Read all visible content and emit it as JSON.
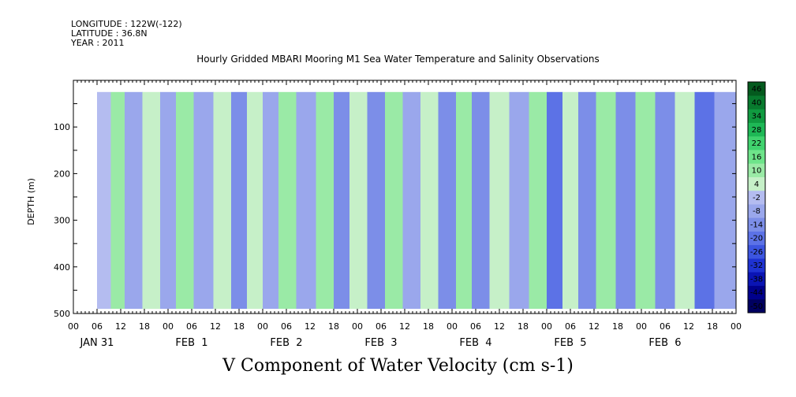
{
  "header": {
    "longitude": "LONGITUDE : 122W(-122)",
    "latitude": "LATITUDE : 36.8N",
    "year": "YEAR : 2011",
    "title": "Hourly Gridded MBARI Mooring M1 Sea Water Temperature and Salinity Observations"
  },
  "chart_data": {
    "type": "heatmap",
    "title": "Hourly Gridded MBARI Mooring M1 Sea Water Temperature and Salinity Observations",
    "variable_label": "V Component of Water Velocity (cm s-1)",
    "ylabel": "DEPTH (m)",
    "ylim": [
      500,
      0
    ],
    "yticks": [
      100,
      200,
      300,
      400,
      500
    ],
    "x_range_hours": [
      0,
      168
    ],
    "data_start_hour": 6,
    "data_depth_range": [
      25,
      490
    ],
    "x_tick_labels": [
      "00",
      "06",
      "12",
      "18",
      "00",
      "06",
      "12",
      "18",
      "00",
      "06",
      "12",
      "18",
      "00",
      "06",
      "12",
      "18",
      "00",
      "06",
      "12",
      "18",
      "00",
      "06",
      "12",
      "18",
      "00",
      "06",
      "12",
      "18",
      "00"
    ],
    "x_day_labels": [
      "JAN 31",
      "FEB  1",
      "FEB  2",
      "FEB  3",
      "FEB  4",
      "FEB  5",
      "FEB  6"
    ],
    "colorbar": {
      "levels": [
        -50,
        -44,
        -38,
        -32,
        -26,
        -20,
        -14,
        -8,
        -2,
        4,
        10,
        16,
        22,
        28,
        34,
        40,
        46
      ],
      "labels": [
        "46",
        "40",
        "34",
        "28",
        "22",
        "16",
        "10",
        "4",
        "-2",
        "-8",
        "-14",
        "-20",
        "-26",
        "-32",
        "-38",
        "-44",
        "-50"
      ],
      "colors": [
        "#000060",
        "#00008c",
        "#0a14b4",
        "#1e32d2",
        "#3c55e0",
        "#5c72e6",
        "#7c8ee8",
        "#9aa7ec",
        "#b4bcf0",
        "#c6f0c8",
        "#9aeaa6",
        "#6ee48a",
        "#40d26e",
        "#1eb856",
        "#109a40",
        "#087a2e",
        "#045a1e"
      ]
    },
    "bands": [
      {
        "hour": 8,
        "value": 2
      },
      {
        "hour": 11,
        "value": 10
      },
      {
        "hour": 15,
        "value": -8
      },
      {
        "hour": 20,
        "value": 6
      },
      {
        "hour": 24,
        "value": -4
      },
      {
        "hour": 28,
        "value": 12
      },
      {
        "hour": 33,
        "value": -6
      },
      {
        "hour": 38,
        "value": 8
      },
      {
        "hour": 42,
        "value": -14
      },
      {
        "hour": 46,
        "value": 6
      },
      {
        "hour": 50,
        "value": -8
      },
      {
        "hour": 54,
        "value": 12
      },
      {
        "hour": 59,
        "value": -4
      },
      {
        "hour": 64,
        "value": 10
      },
      {
        "hour": 68,
        "value": -10
      },
      {
        "hour": 72,
        "value": 6
      },
      {
        "hour": 77,
        "value": -12
      },
      {
        "hour": 81,
        "value": 12
      },
      {
        "hour": 86,
        "value": -6
      },
      {
        "hour": 90,
        "value": 6
      },
      {
        "hour": 95,
        "value": -10
      },
      {
        "hour": 99,
        "value": 12
      },
      {
        "hour": 103,
        "value": -14
      },
      {
        "hour": 108,
        "value": 8
      },
      {
        "hour": 113,
        "value": -4
      },
      {
        "hour": 118,
        "value": 10
      },
      {
        "hour": 122,
        "value": -16
      },
      {
        "hour": 126,
        "value": 4
      },
      {
        "hour": 130,
        "value": -10
      },
      {
        "hour": 135,
        "value": 10
      },
      {
        "hour": 140,
        "value": -12
      },
      {
        "hour": 145,
        "value": 12
      },
      {
        "hour": 150,
        "value": -14
      },
      {
        "hour": 155,
        "value": 6
      },
      {
        "hour": 160,
        "value": -18
      },
      {
        "hour": 165,
        "value": -4
      }
    ]
  }
}
